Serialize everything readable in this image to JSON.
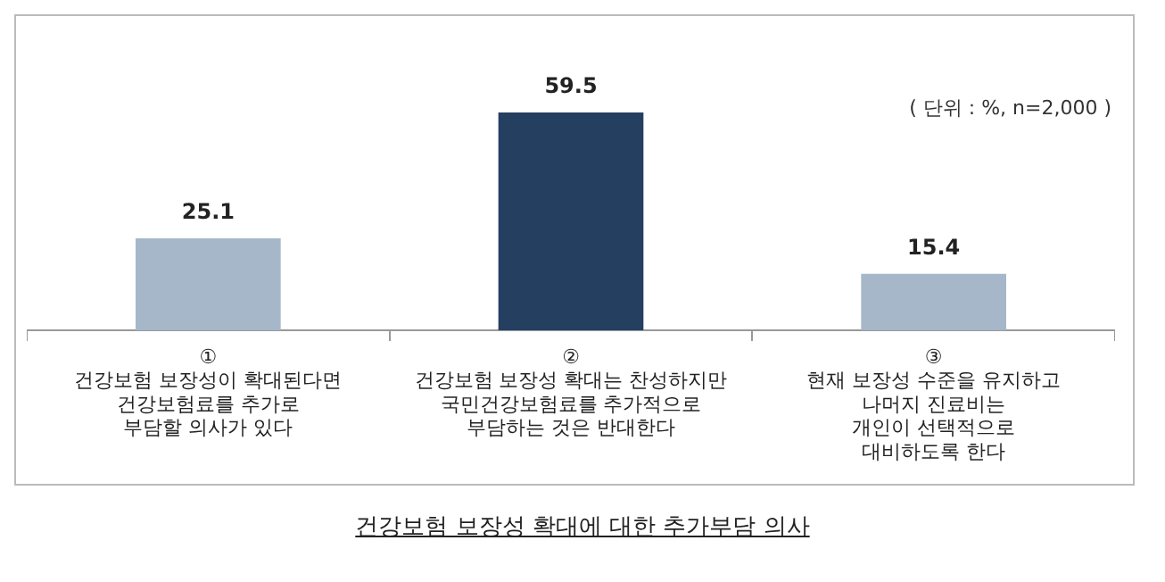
{
  "chart_data": {
    "type": "bar",
    "title": "건강보험 보장성 확대에 대한 추가부담 의사",
    "categories": [
      "①\n건강보험 보장성이 확대된다면\n건강보험료를 추가로\n부담할 의사가 있다",
      "②\n건강보험 보장성 확대는 찬성하지만\n국민건강보험료를 추가적으로\n부담하는 것은 반대한다",
      "③\n현재 보장성 수준을 유지하고\n나머지 진료비는\n개인이 선택적으로\n대비하도록 한다"
    ],
    "values": [
      25.1,
      59.5,
      15.4
    ],
    "colors": [
      "#a6b7c9",
      "#253f61",
      "#a6b7c9"
    ],
    "data_labels": true,
    "annotations": [
      "( 단위 : %, n=2,000 )"
    ]
  }
}
